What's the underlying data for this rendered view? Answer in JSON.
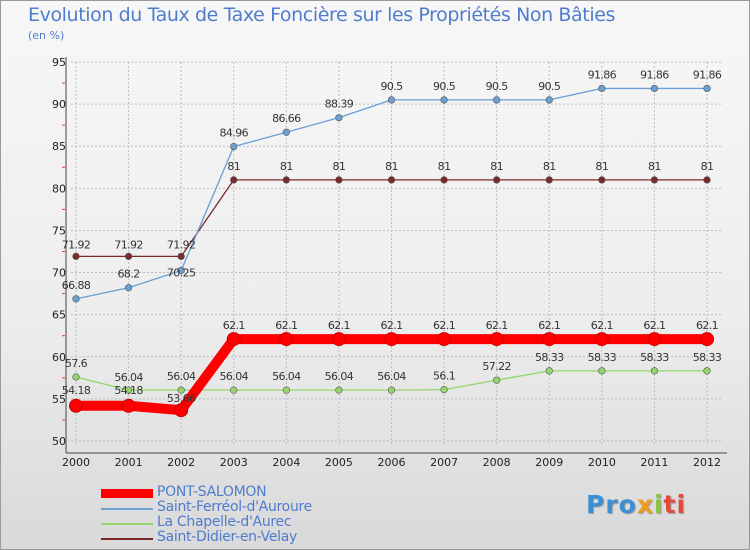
{
  "chart_data": {
    "type": "line",
    "title": "Evolution du Taux de Taxe Foncière sur les Propriétés Non Bâties",
    "ylabel": "(en %)",
    "ylim": [
      50,
      95
    ],
    "yticks": [
      "50",
      "55",
      "60",
      "65",
      "70",
      "75",
      "80",
      "85",
      "90",
      "95"
    ],
    "categories": [
      "2000",
      "2001",
      "2002",
      "2003",
      "2004",
      "2005",
      "2006",
      "2007",
      "2008",
      "2009",
      "2010",
      "2011",
      "2012"
    ],
    "series": [
      {
        "name": "PONT-SALOMON",
        "color": "#ff0000",
        "values": [
          54.18,
          54.18,
          53.66,
          62.1,
          62.1,
          62.1,
          62.1,
          62.1,
          62.1,
          62.1,
          62.1,
          62.1,
          62.1
        ],
        "labels": [
          "54.18",
          "54.18",
          "53.66",
          "62.1",
          "62.1",
          "62.1",
          "62.1",
          "62.1",
          "62.1",
          "62.1",
          "62.1",
          "62.1",
          "62.1"
        ]
      },
      {
        "name": "Saint-Ferréol-d'Auroure",
        "color": "#6c9fd4",
        "values": [
          66.88,
          68.2,
          70.25,
          84.96,
          86.66,
          88.39,
          90.5,
          90.5,
          90.5,
          90.5,
          91.86,
          91.86,
          91.86
        ],
        "labels": [
          "66.88",
          "68.2",
          "70.25",
          "84.96",
          "86.66",
          "88.39",
          "90.5",
          "90.5",
          "90.5",
          "90.5",
          "91.86",
          "91.86",
          "91.86"
        ]
      },
      {
        "name": "La Chapelle-d'Aurec",
        "color": "#95d56d",
        "values": [
          57.6,
          56.04,
          56.04,
          56.04,
          56.04,
          56.04,
          56.04,
          56.1,
          57.22,
          58.33,
          58.33,
          58.33,
          58.33
        ],
        "labels": [
          "57.6",
          "56.04",
          "56.04",
          "56.04",
          "56.04",
          "56.04",
          "56.04",
          "56.1",
          "57.22",
          "58.33",
          "58.33",
          "58.33",
          "58.33"
        ]
      },
      {
        "name": "Saint-Didier-en-Velay",
        "color": "#7a2a2a",
        "values": [
          71.92,
          71.92,
          71.92,
          81,
          81,
          81,
          81,
          81,
          81,
          81,
          81,
          81,
          81
        ],
        "labels": [
          "71.92",
          "71.92",
          "71.92",
          "81",
          "81",
          "81",
          "81",
          "81",
          "81",
          "81",
          "81",
          "81",
          "81"
        ]
      }
    ]
  },
  "logo": {
    "text": "Proxiti",
    "parts": [
      "Pro",
      "x",
      "i",
      "ti"
    ]
  }
}
